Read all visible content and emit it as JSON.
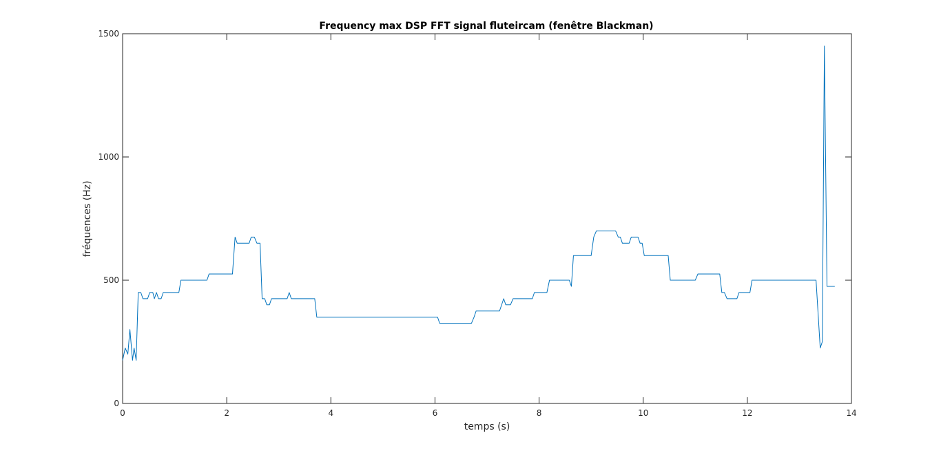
{
  "chart_data": {
    "type": "line",
    "title": "Frequency max DSP FFT signal fluteircam (fenêtre Blackman)",
    "xlabel": "temps (s)",
    "ylabel": "fréquences (Hz)",
    "xlim": [
      0,
      14
    ],
    "ylim": [
      0,
      1500
    ],
    "xticks": [
      0,
      2,
      4,
      6,
      8,
      10,
      12,
      14
    ],
    "yticks": [
      0,
      500,
      1000,
      1500
    ],
    "grid": false,
    "line_color": "#0072BD",
    "series": [
      {
        "points": [
          [
            0.0,
            175
          ],
          [
            0.05,
            225
          ],
          [
            0.1,
            200
          ],
          [
            0.14,
            300
          ],
          [
            0.19,
            175
          ],
          [
            0.22,
            225
          ],
          [
            0.26,
            175
          ],
          [
            0.3,
            450
          ],
          [
            0.35,
            450
          ],
          [
            0.39,
            425
          ],
          [
            0.48,
            425
          ],
          [
            0.52,
            450
          ],
          [
            0.58,
            450
          ],
          [
            0.61,
            425
          ],
          [
            0.65,
            450
          ],
          [
            0.69,
            425
          ],
          [
            0.74,
            425
          ],
          [
            0.78,
            450
          ],
          [
            1.08,
            450
          ],
          [
            1.12,
            500
          ],
          [
            1.62,
            500
          ],
          [
            1.66,
            525
          ],
          [
            2.11,
            525
          ],
          [
            2.16,
            675
          ],
          [
            2.2,
            650
          ],
          [
            2.43,
            650
          ],
          [
            2.47,
            675
          ],
          [
            2.53,
            675
          ],
          [
            2.58,
            650
          ],
          [
            2.64,
            650
          ],
          [
            2.68,
            425
          ],
          [
            2.73,
            425
          ],
          [
            2.77,
            400
          ],
          [
            2.82,
            400
          ],
          [
            2.86,
            425
          ],
          [
            3.16,
            425
          ],
          [
            3.2,
            450
          ],
          [
            3.24,
            425
          ],
          [
            3.69,
            425
          ],
          [
            3.73,
            350
          ],
          [
            6.05,
            350
          ],
          [
            6.09,
            325
          ],
          [
            6.7,
            325
          ],
          [
            6.75,
            350
          ],
          [
            6.79,
            375
          ],
          [
            7.24,
            375
          ],
          [
            7.32,
            425
          ],
          [
            7.36,
            400
          ],
          [
            7.45,
            400
          ],
          [
            7.5,
            425
          ],
          [
            7.87,
            425
          ],
          [
            7.91,
            450
          ],
          [
            8.15,
            450
          ],
          [
            8.2,
            500
          ],
          [
            8.58,
            500
          ],
          [
            8.62,
            475
          ],
          [
            8.66,
            600
          ],
          [
            9.0,
            600
          ],
          [
            9.05,
            675
          ],
          [
            9.1,
            700
          ],
          [
            9.47,
            700
          ],
          [
            9.52,
            675
          ],
          [
            9.56,
            675
          ],
          [
            9.6,
            650
          ],
          [
            9.73,
            650
          ],
          [
            9.77,
            675
          ],
          [
            9.9,
            675
          ],
          [
            9.94,
            650
          ],
          [
            9.98,
            650
          ],
          [
            10.02,
            600
          ],
          [
            10.48,
            600
          ],
          [
            10.52,
            500
          ],
          [
            11.0,
            500
          ],
          [
            11.05,
            525
          ],
          [
            11.47,
            525
          ],
          [
            11.51,
            450
          ],
          [
            11.56,
            450
          ],
          [
            11.61,
            425
          ],
          [
            11.8,
            425
          ],
          [
            11.84,
            450
          ],
          [
            12.05,
            450
          ],
          [
            12.09,
            500
          ],
          [
            13.32,
            500
          ],
          [
            13.4,
            225
          ],
          [
            13.44,
            250
          ],
          [
            13.48,
            1450
          ],
          [
            13.53,
            475
          ],
          [
            13.68,
            475
          ]
        ]
      }
    ]
  }
}
